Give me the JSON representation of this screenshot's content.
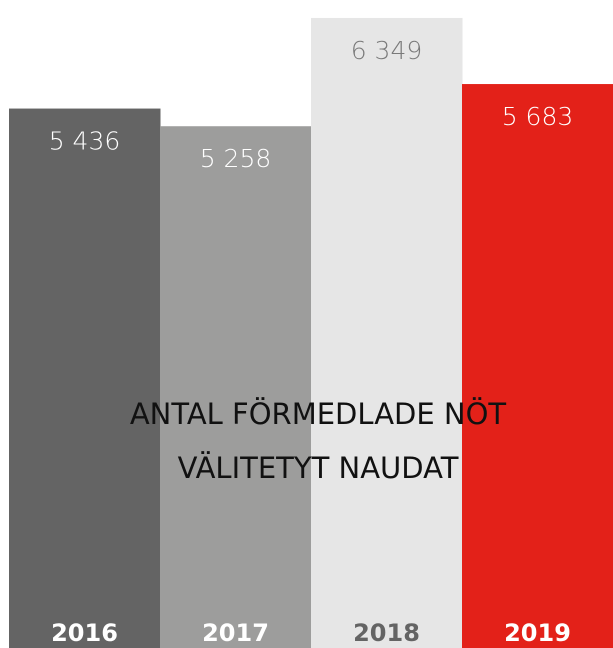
{
  "chart_data": {
    "type": "bar",
    "title": [
      "ANTAL FÖRMEDLADE NÖT",
      "VÄLITETYT NAUDAT"
    ],
    "categories": [
      "2016",
      "2017",
      "2018",
      "2019"
    ],
    "values": [
      5436,
      5258,
      6349,
      5683
    ],
    "value_labels": [
      "5 436",
      "5 258",
      "6 349",
      "5 683"
    ],
    "colors": [
      "#646464",
      "#9d9d9c",
      "#e6e6e6",
      "#e32119"
    ],
    "ylim": [
      0,
      6530
    ]
  }
}
